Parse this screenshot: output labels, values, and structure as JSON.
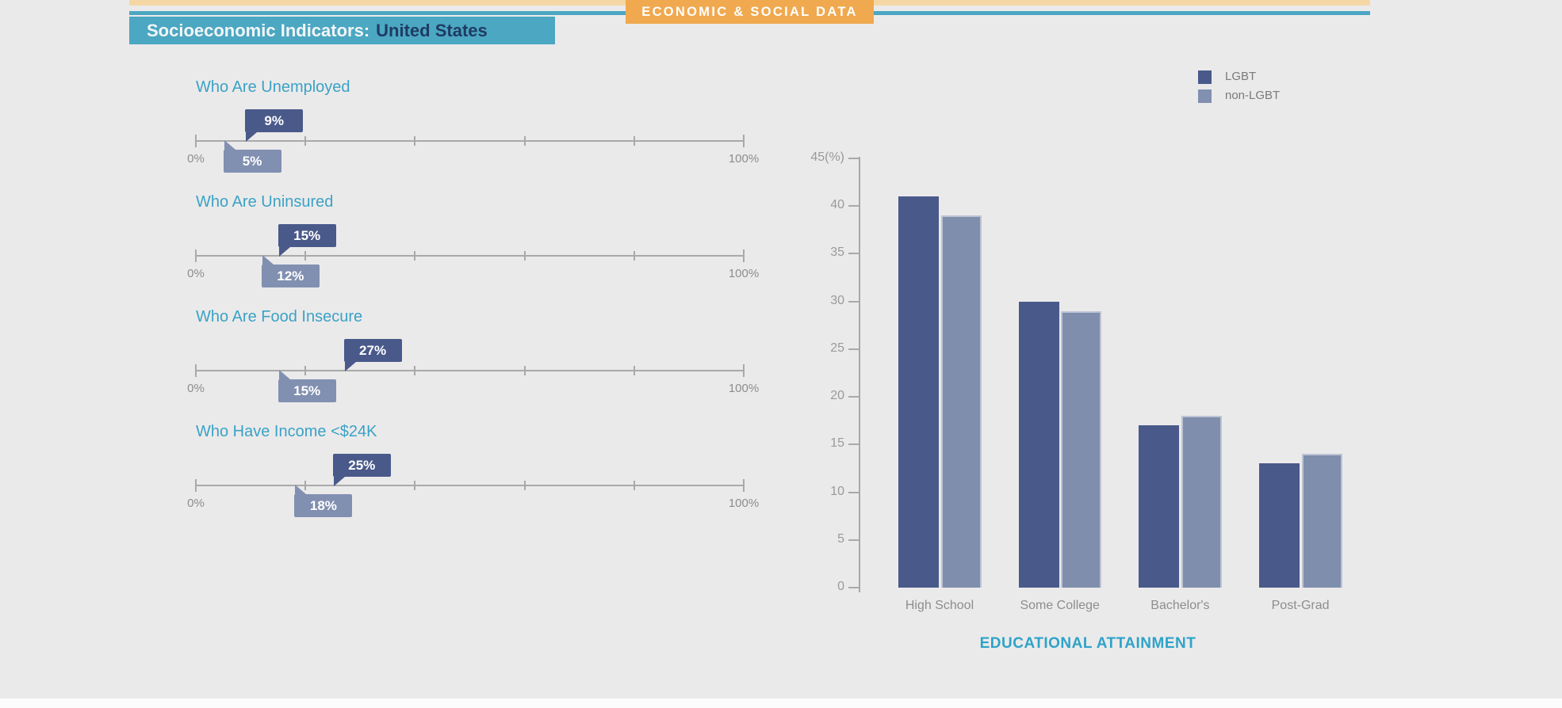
{
  "colors": {
    "background": "#EBEAEA",
    "accent_strip": "#F5D7A5",
    "tab_orange": "#F0A94F",
    "teal": "#4BA7C2",
    "heading_teal": "#3AA2C6",
    "xlabel_teal": "#2EA3C9",
    "dark_series": "#49598A",
    "light_series": "#8190B1",
    "light_bar_fill": "#7F8EAC",
    "light_bar_border": "#BCC4D5",
    "title_region_navy": "#1F3B63",
    "axis_gray": "#A9A9A9",
    "label_gray": "#8D8D8D"
  },
  "header": {
    "tab_label": "ECONOMIC & SOCIAL DATA",
    "title_prefix": "Socioeconomic Indicators:",
    "title_region": "United States"
  },
  "legend": {
    "items": [
      {
        "label": "LGBT",
        "color": "#49598A"
      },
      {
        "label": "non-LGBT",
        "color": "#8190B1"
      }
    ]
  },
  "chart_data": [
    {
      "type": "bullet-sliders",
      "title": "Socioeconomic Indicators: United States",
      "series_names": [
        "LGBT",
        "non-LGBT"
      ],
      "axis": {
        "min": 0,
        "max": 100,
        "tick_count": 6,
        "min_label": "0%",
        "max_label": "100%"
      },
      "items": [
        {
          "label": "Who Are Unemployed",
          "lgbt": 9,
          "non_lgbt": 5,
          "lgbt_label": "9%",
          "non_lgbt_label": "5%"
        },
        {
          "label": "Who Are Uninsured",
          "lgbt": 15,
          "non_lgbt": 12,
          "lgbt_label": "15%",
          "non_lgbt_label": "12%"
        },
        {
          "label": "Who Are Food Insecure",
          "lgbt": 27,
          "non_lgbt": 15,
          "lgbt_label": "27%",
          "non_lgbt_label": "15%"
        },
        {
          "label": "Who Have Income <$24K",
          "lgbt": 25,
          "non_lgbt": 18,
          "lgbt_label": "25%",
          "non_lgbt_label": "18%"
        }
      ]
    },
    {
      "type": "bar",
      "categories": [
        "High School",
        "Some College",
        "Bachelor's",
        "Post-Grad"
      ],
      "series": [
        {
          "name": "LGBT",
          "values": [
            41,
            30,
            17,
            13
          ],
          "color": "#49598A"
        },
        {
          "name": "non-LGBT",
          "values": [
            39,
            29,
            18,
            14
          ],
          "color": "#7F8EAC"
        }
      ],
      "xlabel": "EDUCATIONAL ATTAINMENT",
      "ylim": [
        0,
        45
      ],
      "ytick_interval": 5,
      "ytick_labels": [
        "0",
        "5",
        "10",
        "15",
        "20",
        "25",
        "30",
        "35",
        "40",
        "45(%)"
      ],
      "legend_position": "top-right",
      "grid": false
    }
  ]
}
